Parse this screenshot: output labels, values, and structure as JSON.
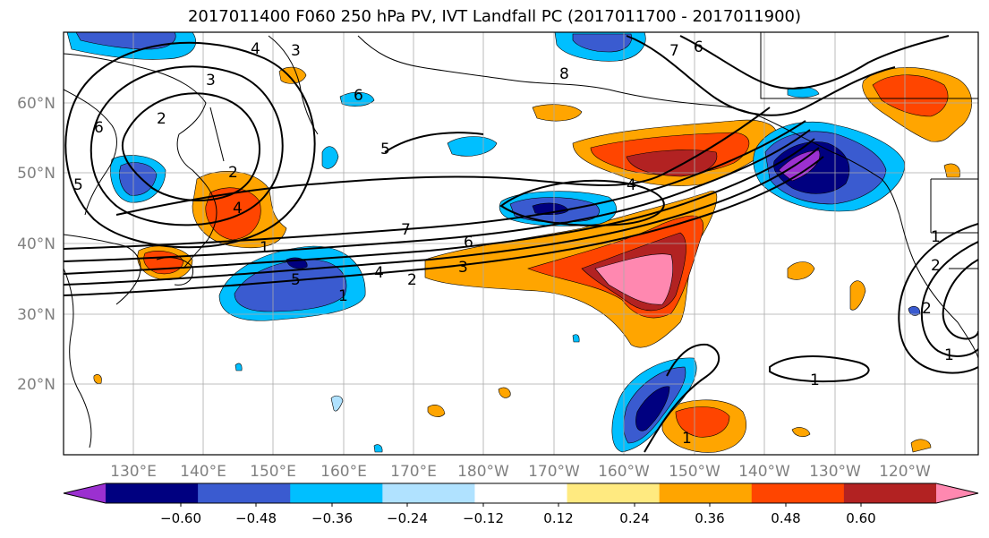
{
  "title": "2017011400 F060 250 hPa PV, IVT Landfall PC (2017011700 - 2017011900)",
  "lat_labels": [
    "60°N",
    "50°N",
    "40°N",
    "30°N",
    "20°N"
  ],
  "lon_labels": [
    "130°E",
    "140°E",
    "150°E",
    "160°E",
    "170°E",
    "180°W",
    "170°W",
    "160°W",
    "150°W",
    "140°W",
    "130°W",
    "120°W"
  ],
  "colorbar": {
    "colors": [
      "#9b30d0",
      "#000080",
      "#3a5bd0",
      "#00bfff",
      "#b0e2ff",
      "#ffffff",
      "#ffea80",
      "#ffa500",
      "#ff4500",
      "#b22222",
      "#ff88b0"
    ],
    "tick_labels": [
      "−0.60",
      "−0.48",
      "−0.36",
      "−0.24",
      "−0.12",
      "0.12",
      "0.24",
      "0.36",
      "0.48",
      "0.60"
    ]
  },
  "contour_labels": [
    "4",
    "3",
    "7",
    "6",
    "3",
    "2",
    "6",
    "5",
    "2",
    "5",
    "4",
    "7",
    "6",
    "5",
    "4",
    "3",
    "2",
    "1",
    "4",
    "1",
    "1",
    "1",
    "2",
    "1",
    "2",
    "8",
    "6",
    "1"
  ]
}
